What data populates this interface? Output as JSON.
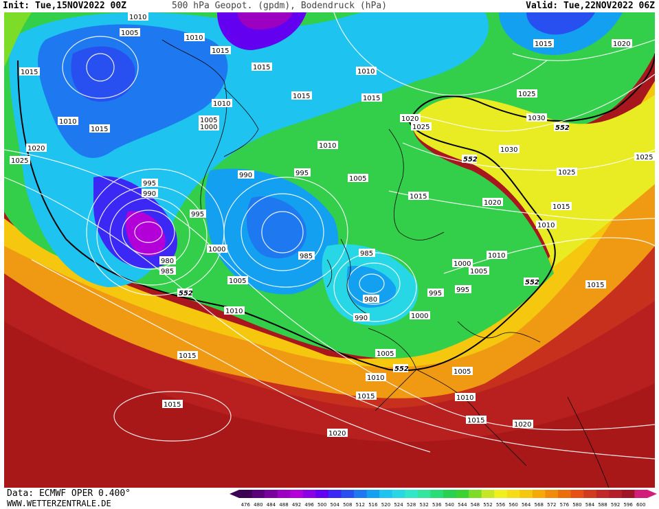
{
  "header": {
    "init": "Init: Tue,15NOV2022 00Z",
    "title": "500 hPa Geopot. (gpdm), Bodendruck (hPa)",
    "valid": "Valid: Tue,22NOV2022 06Z"
  },
  "footer": {
    "source": "Data: ECMWF OPER 0.400°",
    "website": "WWW.WETTERZENTRALE.DE"
  },
  "colorbar": {
    "ticks": [
      "476",
      "480",
      "484",
      "488",
      "492",
      "496",
      "500",
      "504",
      "508",
      "512",
      "516",
      "520",
      "524",
      "528",
      "532",
      "536",
      "540",
      "544",
      "548",
      "552",
      "556",
      "560",
      "564",
      "568",
      "572",
      "576",
      "580",
      "584",
      "588",
      "592",
      "596",
      "600"
    ],
    "colors": [
      "#3c0055",
      "#5a007a",
      "#7a009e",
      "#9c00c0",
      "#b400d8",
      "#8c00e6",
      "#6400f0",
      "#3c28f5",
      "#2850f0",
      "#1e78f0",
      "#14a0f0",
      "#1ec3f0",
      "#28d7e6",
      "#32e6c8",
      "#32e6a0",
      "#28dc78",
      "#28d250",
      "#3cd232",
      "#7ddc28",
      "#c8e628",
      "#f0f01e",
      "#f5dc14",
      "#f5c80f",
      "#f5aa0a",
      "#f08c0a",
      "#eb6e0a",
      "#e65014",
      "#d23c1e",
      "#c32828",
      "#b41e28",
      "#a01428",
      "#d21e78"
    ]
  },
  "map_labels": {
    "pressure": [
      {
        "text": "1010"
      },
      {
        "text": "1005"
      },
      {
        "text": "1010"
      },
      {
        "text": "1015"
      },
      {
        "text": "1015"
      },
      {
        "text": "1015"
      },
      {
        "text": "1010"
      },
      {
        "text": "1015"
      },
      {
        "text": "1015"
      },
      {
        "text": "1010"
      },
      {
        "text": "1005"
      },
      {
        "text": "1000"
      },
      {
        "text": "1010"
      },
      {
        "text": "1015"
      },
      {
        "text": "1020"
      },
      {
        "text": "1025"
      },
      {
        "text": "995"
      },
      {
        "text": "990"
      },
      {
        "text": "995"
      },
      {
        "text": "980"
      },
      {
        "text": "985"
      },
      {
        "text": "1000"
      },
      {
        "text": "1005"
      },
      {
        "text": "990"
      },
      {
        "text": "995"
      },
      {
        "text": "985"
      },
      {
        "text": "1010"
      },
      {
        "text": "1005"
      },
      {
        "text": "1010"
      },
      {
        "text": "1015"
      },
      {
        "text": "1015"
      },
      {
        "text": "985"
      },
      {
        "text": "980"
      },
      {
        "text": "990"
      },
      {
        "text": "1020"
      },
      {
        "text": "1025"
      },
      {
        "text": "1030"
      },
      {
        "text": "1030"
      },
      {
        "text": "1025"
      },
      {
        "text": "1025"
      },
      {
        "text": "1020"
      },
      {
        "text": "1020"
      },
      {
        "text": "1015"
      },
      {
        "text": "1015"
      },
      {
        "text": "1010"
      },
      {
        "text": "1010"
      },
      {
        "text": "1000"
      },
      {
        "text": "1005"
      },
      {
        "text": "995"
      },
      {
        "text": "995"
      },
      {
        "text": "1000"
      },
      {
        "text": "1005"
      },
      {
        "text": "1005"
      },
      {
        "text": "1010"
      },
      {
        "text": "1010"
      },
      {
        "text": "1015"
      },
      {
        "text": "1015"
      },
      {
        "text": "1015"
      },
      {
        "text": "1015"
      },
      {
        "text": "1020"
      },
      {
        "text": "1020"
      },
      {
        "text": "1025"
      }
    ],
    "geopotential": [
      {
        "text": "552"
      },
      {
        "text": "552"
      },
      {
        "text": "552"
      },
      {
        "text": "552"
      },
      {
        "text": "552"
      }
    ]
  }
}
